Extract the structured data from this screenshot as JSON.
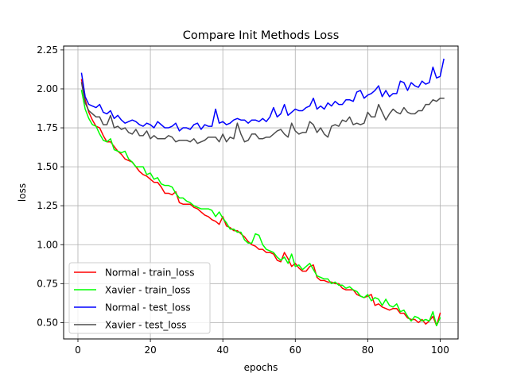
{
  "chart_data": {
    "type": "line",
    "title": "Compare Init Methods Loss",
    "xlabel": "epochs",
    "ylabel": "loss",
    "xlim": [
      -3.95,
      104.95
    ],
    "ylim": [
      0.395,
      2.275
    ],
    "xticks": [
      0,
      20,
      40,
      60,
      80,
      100
    ],
    "yticks": [
      0.5,
      0.75,
      1.0,
      1.25,
      1.5,
      1.75,
      2.0,
      2.25
    ],
    "ytick_labels": [
      "0.50",
      "0.75",
      "1.00",
      "1.25",
      "1.50",
      "1.75",
      "2.00",
      "2.25"
    ],
    "grid": true,
    "legend_position": "lower-left",
    "series": [
      {
        "name": "Normal - train_loss",
        "color": "#ff0000",
        "values": [
          2.06,
          1.93,
          1.85,
          1.8,
          1.76,
          1.75,
          1.7,
          1.66,
          1.66,
          1.63,
          1.6,
          1.58,
          1.55,
          1.54,
          1.53,
          1.5,
          1.47,
          1.45,
          1.44,
          1.42,
          1.4,
          1.4,
          1.37,
          1.33,
          1.33,
          1.32,
          1.34,
          1.27,
          1.26,
          1.26,
          1.26,
          1.24,
          1.23,
          1.21,
          1.19,
          1.18,
          1.16,
          1.15,
          1.13,
          1.18,
          1.12,
          1.11,
          1.09,
          1.09,
          1.07,
          1.05,
          1.02,
          1.0,
          0.99,
          0.97,
          0.97,
          0.95,
          0.95,
          0.94,
          0.9,
          0.89,
          0.95,
          0.91,
          0.86,
          0.88,
          0.85,
          0.83,
          0.83,
          0.86,
          0.87,
          0.79,
          0.77,
          0.77,
          0.76,
          0.76,
          0.75,
          0.75,
          0.72,
          0.71,
          0.71,
          0.71,
          0.68,
          0.67,
          0.66,
          0.67,
          0.68,
          0.61,
          0.62,
          0.6,
          0.59,
          0.58,
          0.59,
          0.59,
          0.56,
          0.56,
          0.53,
          0.52,
          0.52,
          0.5,
          0.52,
          0.49,
          0.51,
          0.54,
          0.48,
          0.56
        ]
      },
      {
        "name": "Xavier - train_loss",
        "color": "#00ff00",
        "values": [
          1.99,
          1.87,
          1.81,
          1.77,
          1.76,
          1.71,
          1.67,
          1.66,
          1.68,
          1.61,
          1.6,
          1.59,
          1.6,
          1.55,
          1.53,
          1.5,
          1.5,
          1.5,
          1.45,
          1.46,
          1.42,
          1.43,
          1.39,
          1.38,
          1.38,
          1.37,
          1.33,
          1.3,
          1.3,
          1.28,
          1.27,
          1.25,
          1.24,
          1.23,
          1.23,
          1.23,
          1.22,
          1.18,
          1.21,
          1.17,
          1.14,
          1.1,
          1.1,
          1.08,
          1.08,
          1.03,
          1.01,
          1.01,
          1.07,
          1.06,
          1.0,
          0.97,
          0.96,
          0.95,
          0.92,
          0.9,
          0.92,
          0.88,
          0.94,
          0.86,
          0.87,
          0.84,
          0.86,
          0.88,
          0.84,
          0.8,
          0.79,
          0.78,
          0.78,
          0.75,
          0.76,
          0.74,
          0.74,
          0.72,
          0.73,
          0.71,
          0.7,
          0.67,
          0.66,
          0.68,
          0.64,
          0.66,
          0.65,
          0.61,
          0.65,
          0.61,
          0.6,
          0.62,
          0.57,
          0.58,
          0.54,
          0.51,
          0.54,
          0.53,
          0.51,
          0.52,
          0.51,
          0.57,
          0.48,
          0.53
        ]
      },
      {
        "name": "Normal - test_loss",
        "color": "#0000ff",
        "values": [
          2.1,
          1.95,
          1.9,
          1.89,
          1.88,
          1.9,
          1.85,
          1.84,
          1.86,
          1.81,
          1.83,
          1.8,
          1.78,
          1.79,
          1.8,
          1.79,
          1.77,
          1.76,
          1.78,
          1.77,
          1.75,
          1.79,
          1.77,
          1.75,
          1.75,
          1.76,
          1.78,
          1.73,
          1.75,
          1.75,
          1.74,
          1.77,
          1.78,
          1.74,
          1.77,
          1.76,
          1.76,
          1.87,
          1.78,
          1.79,
          1.77,
          1.78,
          1.8,
          1.81,
          1.8,
          1.8,
          1.78,
          1.8,
          1.8,
          1.79,
          1.81,
          1.79,
          1.82,
          1.88,
          1.82,
          1.84,
          1.9,
          1.83,
          1.85,
          1.87,
          1.86,
          1.86,
          1.88,
          1.89,
          1.94,
          1.87,
          1.89,
          1.87,
          1.91,
          1.89,
          1.92,
          1.9,
          1.9,
          1.93,
          1.93,
          1.92,
          1.98,
          1.99,
          1.94,
          1.96,
          1.97,
          1.99,
          2.02,
          1.95,
          1.99,
          1.95,
          1.97,
          1.97,
          2.05,
          2.04,
          1.99,
          2.04,
          2.02,
          2.01,
          2.05,
          2.03,
          2.04,
          2.14,
          2.07,
          2.08,
          2.19
        ]
      },
      {
        "name": "Xavier - test_loss",
        "color": "#4d4d4d",
        "values": [
          2.04,
          1.91,
          1.86,
          1.84,
          1.82,
          1.82,
          1.77,
          1.77,
          1.83,
          1.75,
          1.76,
          1.74,
          1.75,
          1.72,
          1.71,
          1.74,
          1.7,
          1.7,
          1.73,
          1.68,
          1.7,
          1.68,
          1.68,
          1.68,
          1.7,
          1.69,
          1.66,
          1.67,
          1.67,
          1.67,
          1.66,
          1.68,
          1.65,
          1.66,
          1.67,
          1.69,
          1.69,
          1.69,
          1.66,
          1.71,
          1.66,
          1.69,
          1.68,
          1.78,
          1.71,
          1.66,
          1.67,
          1.71,
          1.71,
          1.68,
          1.68,
          1.69,
          1.69,
          1.71,
          1.73,
          1.74,
          1.71,
          1.69,
          1.78,
          1.73,
          1.71,
          1.72,
          1.72,
          1.79,
          1.77,
          1.72,
          1.75,
          1.71,
          1.69,
          1.76,
          1.77,
          1.76,
          1.8,
          1.79,
          1.82,
          1.77,
          1.78,
          1.77,
          1.78,
          1.85,
          1.82,
          1.82,
          1.9,
          1.85,
          1.8,
          1.84,
          1.87,
          1.85,
          1.84,
          1.88,
          1.85,
          1.84,
          1.84,
          1.86,
          1.86,
          1.9,
          1.9,
          1.93,
          1.92,
          1.94,
          1.94
        ]
      }
    ]
  }
}
